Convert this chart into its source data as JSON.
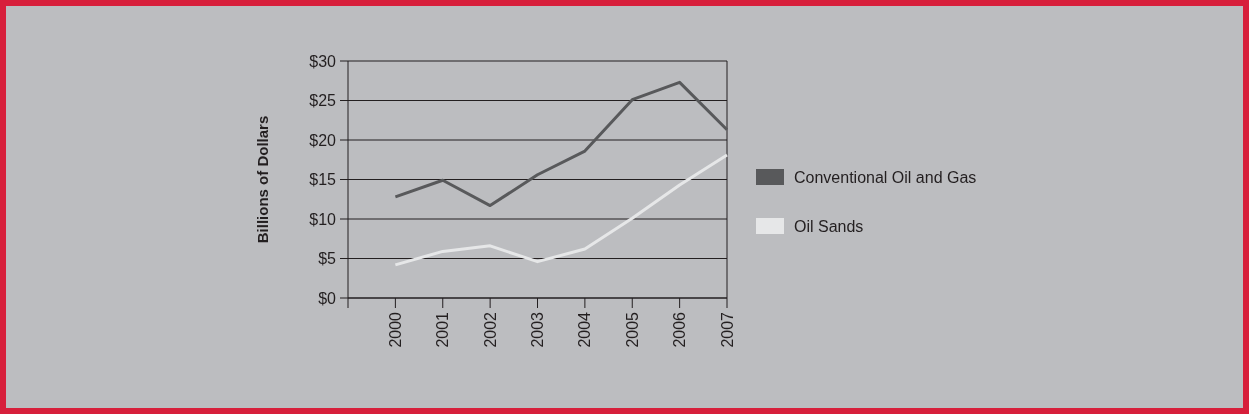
{
  "chart_data": {
    "type": "line",
    "ylabel": "Billions of Dollars",
    "categories": [
      "2000",
      "2001",
      "2002",
      "2003",
      "2004",
      "2005",
      "2006",
      "2007"
    ],
    "series": [
      {
        "name": "Conventional Oil and Gas",
        "color": "#58595b",
        "values": [
          12.8,
          14.9,
          11.7,
          15.6,
          18.6,
          25.1,
          27.3,
          21.3
        ]
      },
      {
        "name": "Oil Sands",
        "color": "#e6e7e8",
        "values": [
          4.2,
          5.9,
          6.6,
          4.6,
          6.2,
          10.1,
          14.3,
          18.1
        ]
      }
    ],
    "ylim": [
      0,
      30
    ],
    "yticks": [
      {
        "value": 0,
        "label": "$0"
      },
      {
        "value": 5,
        "label": "$5"
      },
      {
        "value": 10,
        "label": "$10"
      },
      {
        "value": 15,
        "label": "$15"
      },
      {
        "value": 20,
        "label": "$20"
      },
      {
        "value": 25,
        "label": "$25"
      },
      {
        "value": 30,
        "label": "$30"
      }
    ],
    "grid": "y",
    "legend": "right",
    "marker": "none",
    "line_style": "solid"
  }
}
